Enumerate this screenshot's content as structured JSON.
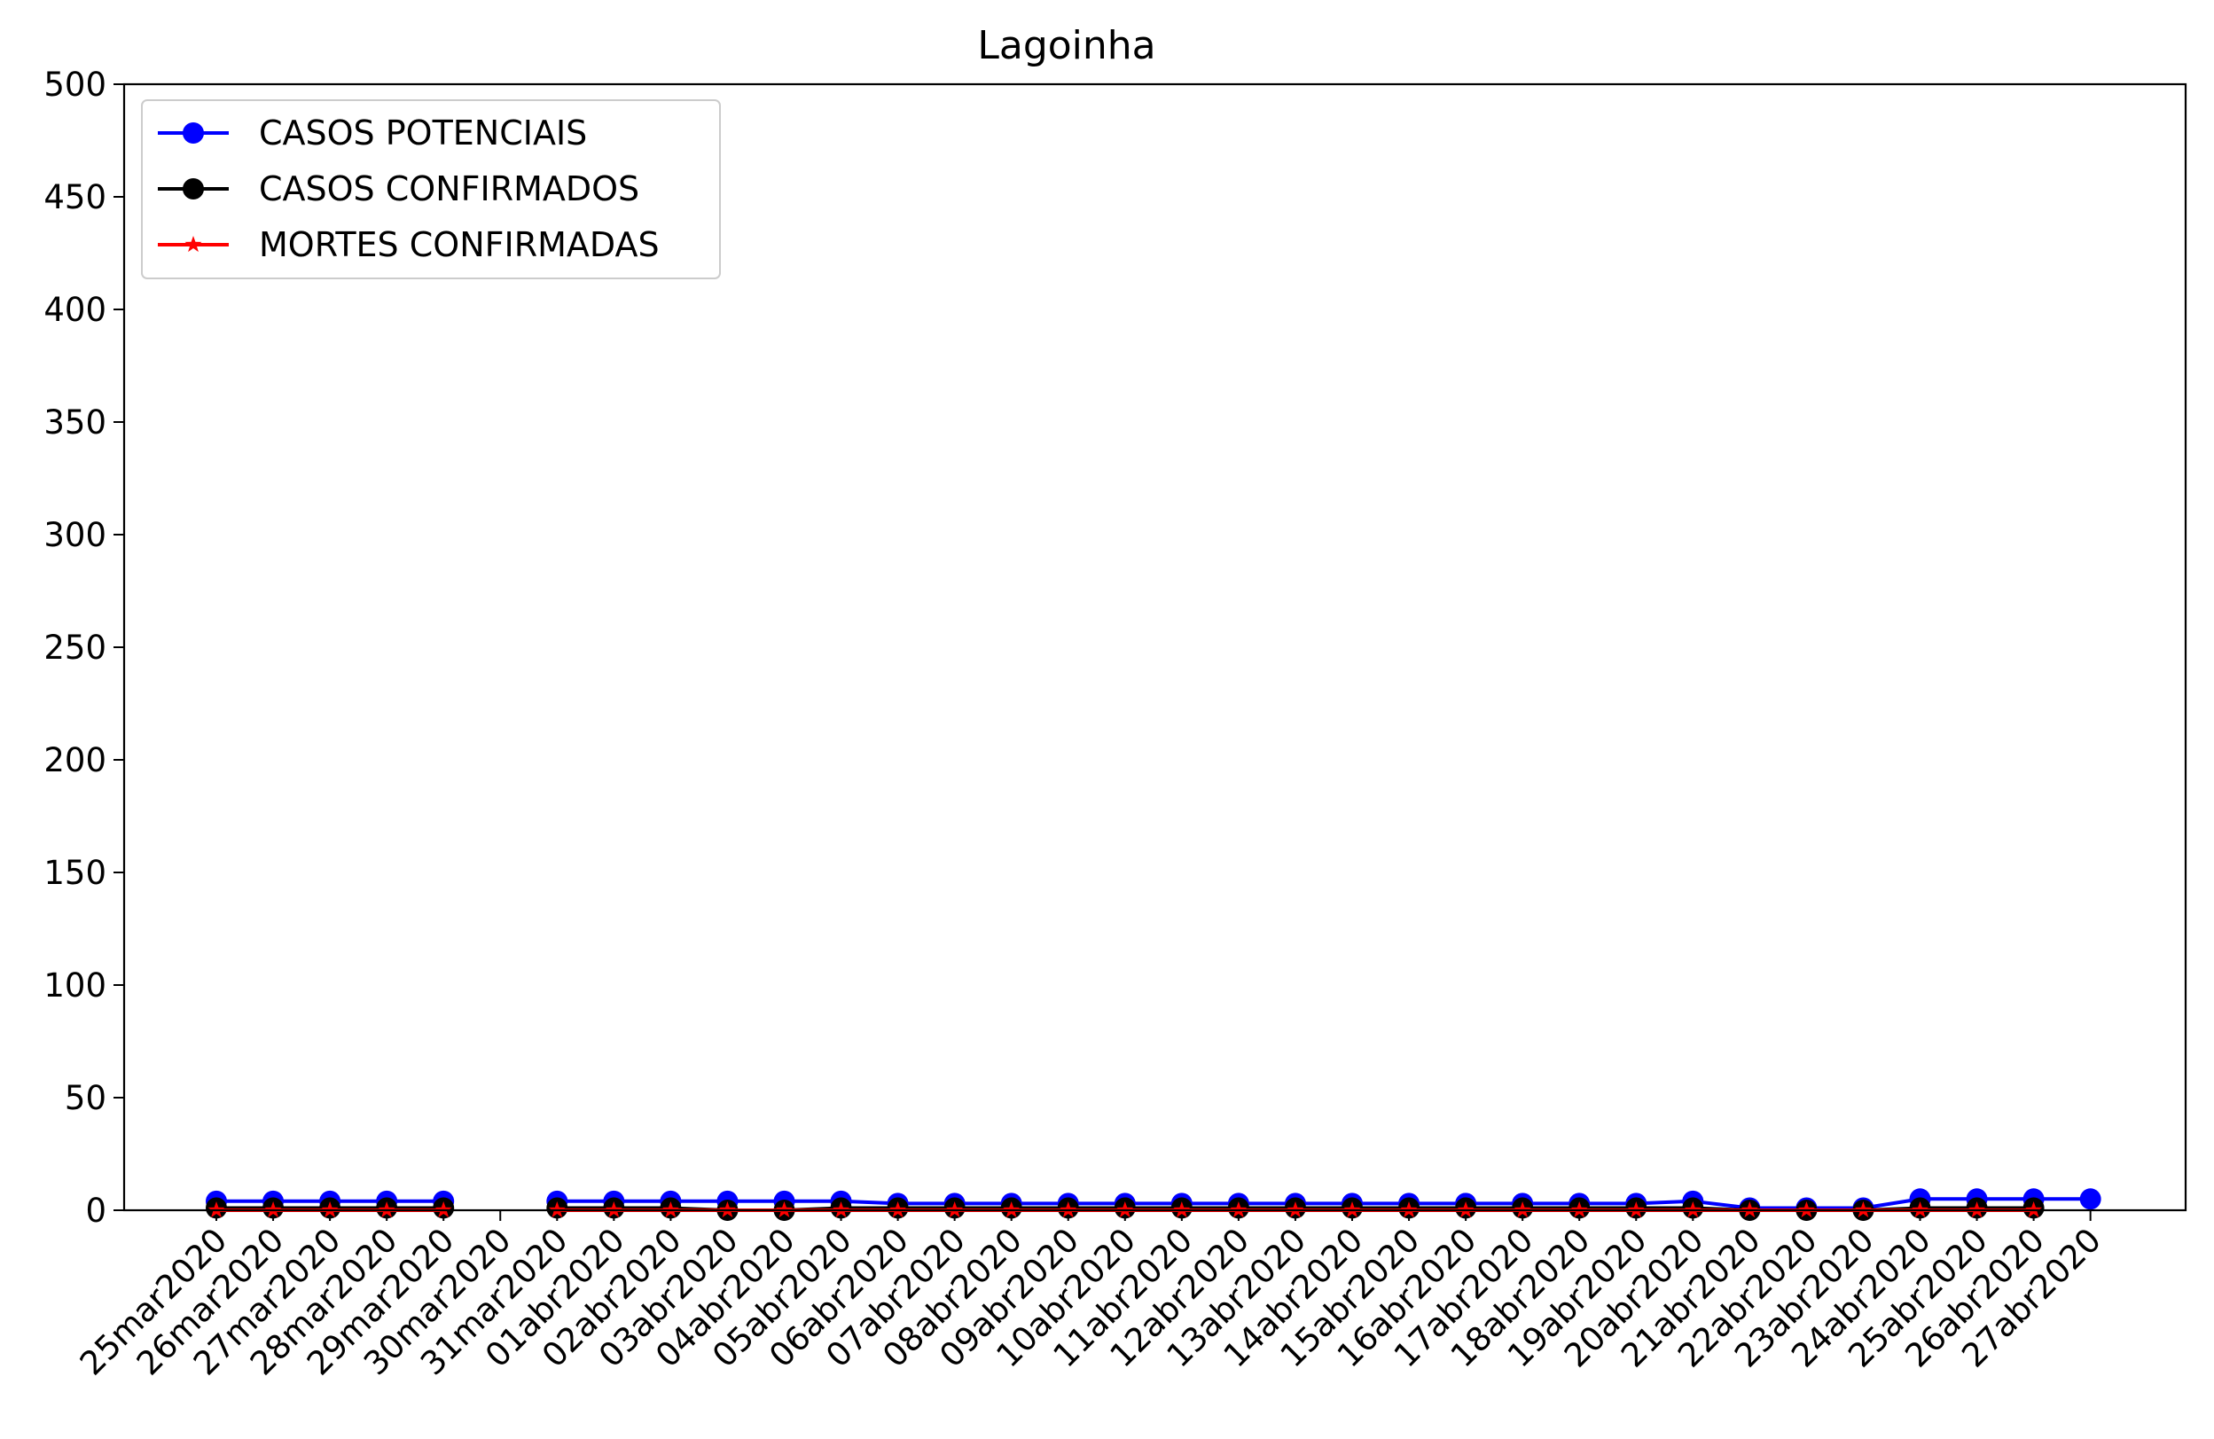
{
  "chart_data": {
    "type": "line",
    "title": "Lagoinha",
    "xlabel": "",
    "ylabel": "",
    "ylim": [
      0,
      500
    ],
    "yticks": [
      0,
      50,
      100,
      150,
      200,
      250,
      300,
      350,
      400,
      450,
      500
    ],
    "grid": false,
    "legend_position": "top-left",
    "categories": [
      "25mar2020",
      "26mar2020",
      "27mar2020",
      "28mar2020",
      "29mar2020",
      "30mar2020",
      "31mar2020",
      "01abr2020",
      "02abr2020",
      "03abr2020",
      "04abr2020",
      "05abr2020",
      "06abr2020",
      "07abr2020",
      "08abr2020",
      "09abr2020",
      "10abr2020",
      "11abr2020",
      "12abr2020",
      "13abr2020",
      "14abr2020",
      "15abr2020",
      "16abr2020",
      "17abr2020",
      "18abr2020",
      "19abr2020",
      "20abr2020",
      "21abr2020",
      "22abr2020",
      "23abr2020",
      "24abr2020",
      "25abr2020",
      "26abr2020",
      "27abr2020"
    ],
    "series": [
      {
        "name": "CASOS POTENCIAIS",
        "color": "#0000ff",
        "marker": "circle",
        "values": [
          4,
          4,
          4,
          4,
          4,
          null,
          4,
          4,
          4,
          4,
          4,
          4,
          3,
          3,
          3,
          3,
          3,
          3,
          3,
          3,
          3,
          3,
          3,
          3,
          3,
          3,
          4,
          1,
          1,
          1,
          5,
          5,
          5,
          5
        ]
      },
      {
        "name": "CASOS CONFIRMADOS",
        "color": "#000000",
        "marker": "circle",
        "values": [
          1,
          1,
          1,
          1,
          1,
          null,
          1,
          1,
          1,
          0,
          0,
          1,
          1,
          1,
          1,
          1,
          1,
          1,
          1,
          1,
          1,
          1,
          1,
          1,
          1,
          1,
          1,
          0,
          0,
          0,
          1,
          1,
          1,
          null
        ]
      },
      {
        "name": "MORTES CONFIRMADAS",
        "color": "#ff0000",
        "marker": "star",
        "values": [
          0,
          0,
          0,
          0,
          0,
          null,
          0,
          0,
          0,
          0,
          0,
          0,
          0,
          0,
          0,
          0,
          0,
          0,
          0,
          0,
          0,
          0,
          0,
          0,
          0,
          0,
          0,
          0,
          0,
          0,
          0,
          0,
          0,
          null
        ]
      }
    ]
  }
}
